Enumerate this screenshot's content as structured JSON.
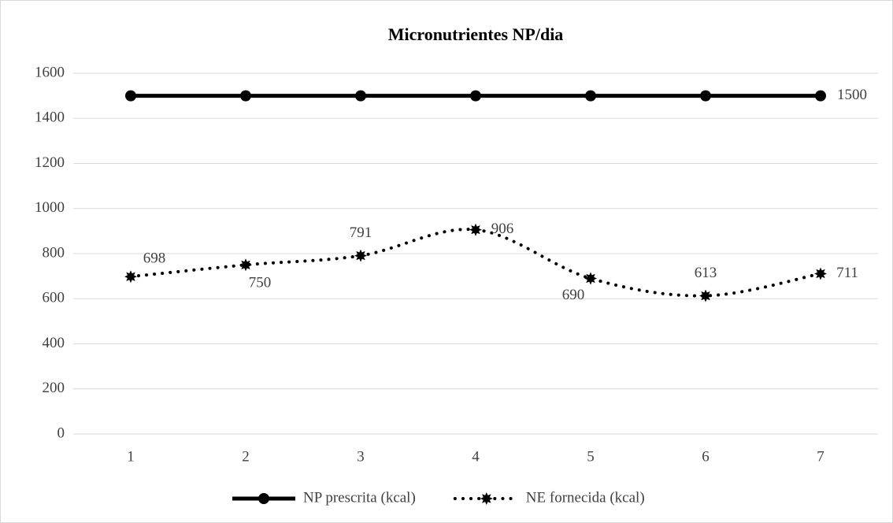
{
  "chart_data": {
    "type": "line",
    "title": "Micronutrientes NP/dia",
    "categories": [
      "1",
      "2",
      "3",
      "4",
      "5",
      "6",
      "7"
    ],
    "series": [
      {
        "name": "NP prescrita (kcal)",
        "color": "#000000",
        "style": "solid",
        "marker": "circle",
        "data_labels": "last",
        "values": [
          1500,
          1500,
          1500,
          1500,
          1500,
          1500,
          1500
        ]
      },
      {
        "name": "NE fornecida (kcal)",
        "color": "#000000",
        "style": "dotted",
        "marker": "star",
        "smooth": true,
        "data_labels": "all",
        "values": [
          698,
          750,
          791,
          906,
          690,
          613,
          711
        ]
      }
    ],
    "ylim": [
      0,
      1600
    ],
    "yticks": [
      0,
      200,
      400,
      600,
      800,
      1000,
      1200,
      1400,
      1600
    ],
    "grid": true,
    "legend": "bottom"
  }
}
